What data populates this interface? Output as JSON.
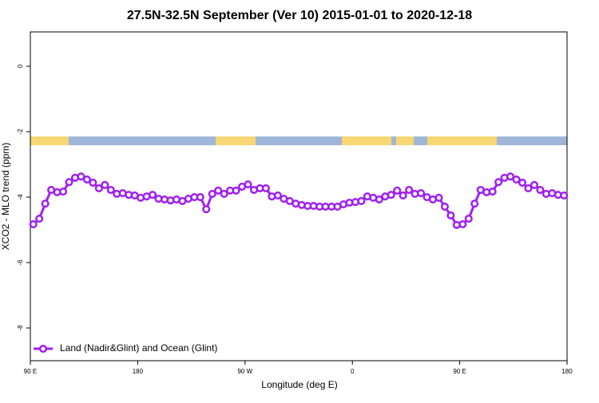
{
  "chart_data": {
    "type": "line",
    "title": "27.5N-32.5N September (Ver 10)   2015-01-01 to 2020-12-18",
    "x_label": "Longitude (deg E)",
    "y_label": "XCO2 - MLO trend (ppm)",
    "xlim": [
      90,
      540
    ],
    "ylim": [
      -9,
      1.05
    ],
    "xticks": [
      {
        "value": 90,
        "label": "90 E"
      },
      {
        "value": 180,
        "label": "180"
      },
      {
        "value": 270,
        "label": "90 W"
      },
      {
        "value": 360,
        "label": "0"
      },
      {
        "value": 450,
        "label": "90 E"
      },
      {
        "value": 540,
        "label": "180"
      }
    ],
    "yticks": [
      0,
      -2,
      -4,
      -6,
      -8
    ],
    "legend": "bottomleft",
    "x": [
      92.5,
      97.5,
      102.5,
      107.5,
      112.5,
      117.5,
      122.5,
      127.5,
      132.5,
      137.5,
      142.5,
      147.5,
      152.5,
      157.5,
      162.5,
      167.5,
      172.5,
      177.5,
      182.5,
      187.5,
      192.5,
      197.5,
      202.5,
      207.5,
      212.5,
      217.5,
      222.5,
      227.5,
      232.5,
      237.5,
      242.5,
      247.5,
      252.5,
      257.5,
      262.5,
      267.5,
      272.5,
      277.5,
      282.5,
      287.5,
      292.5,
      297.5,
      302.5,
      307.5,
      312.5,
      317.5,
      322.5,
      327.5,
      332.5,
      337.5,
      342.5,
      347.5,
      352.5,
      357.5,
      362.5,
      367.5,
      372.5,
      377.5,
      382.5,
      387.5,
      392.5,
      397.5,
      402.5,
      407.5,
      412.5,
      417.5,
      422.5,
      427.5,
      432.5,
      437.5,
      442.5,
      447.5,
      452.5,
      457.5,
      462.5,
      467.5,
      472.5,
      477.5,
      482.5,
      487.5,
      492.5,
      497.5,
      502.5,
      507.5,
      512.5,
      517.5,
      522.5,
      527.5,
      532.5,
      537.5
    ],
    "series": [
      {
        "name": "Land (Nadir&Glint) and Ocean (Glint)",
        "color": "#a020f0",
        "values": [
          -4.83,
          -4.66,
          -4.2,
          -3.78,
          -3.85,
          -3.83,
          -3.54,
          -3.41,
          -3.37,
          -3.46,
          -3.56,
          -3.73,
          -3.63,
          -3.78,
          -3.9,
          -3.88,
          -3.93,
          -3.95,
          -4.02,
          -3.98,
          -3.93,
          -4.05,
          -4.07,
          -4.1,
          -4.07,
          -4.12,
          -4.05,
          -4.0,
          -4.0,
          -4.37,
          -3.9,
          -3.8,
          -3.9,
          -3.8,
          -3.8,
          -3.68,
          -3.61,
          -3.78,
          -3.73,
          -3.73,
          -3.98,
          -3.95,
          -4.05,
          -4.12,
          -4.2,
          -4.24,
          -4.27,
          -4.27,
          -4.29,
          -4.29,
          -4.29,
          -4.29,
          -4.22,
          -4.17,
          -4.15,
          -4.12,
          -3.98,
          -4.02,
          -4.07,
          -3.98,
          -3.93,
          -3.8,
          -3.95,
          -3.78,
          -3.9,
          -3.88,
          -4.0,
          -4.07,
          -4.02,
          -4.29,
          -4.56,
          -4.85,
          -4.83,
          -4.66,
          -4.2,
          -3.78,
          -3.85,
          -3.83,
          -3.54,
          -3.41,
          -3.37,
          -3.46,
          -3.56,
          -3.73,
          -3.63,
          -3.78,
          -3.9,
          -3.88,
          -3.93,
          -3.95
        ]
      }
    ]
  }
}
